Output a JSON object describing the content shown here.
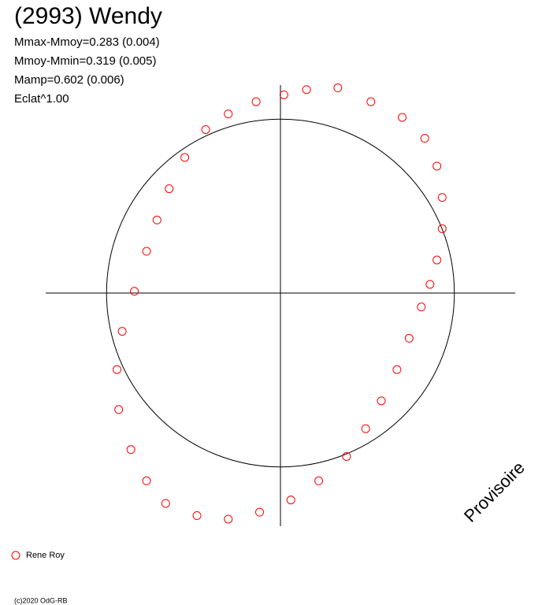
{
  "chart_data": {
    "type": "scatter",
    "title": "(2993) Wendy",
    "annotations": [
      "Mmax-Mmoy=0.283 (0.004)",
      "Mmoy-Mmin=0.319 (0.005)",
      "Mamp=0.602 (0.006)",
      "Eclat^1.00"
    ],
    "watermark": "Provisoire",
    "footer": "(c)2020 OdG-RB",
    "xlim": [
      -1.35,
      1.35
    ],
    "ylim": [
      -1.35,
      1.35
    ],
    "reference_circle": 1,
    "series": [
      {
        "name": "Rene Roy",
        "color": "#ff0000",
        "x": [
          0.02,
          0.15,
          0.33,
          0.52,
          0.7,
          0.83,
          0.9,
          0.93,
          0.93,
          0.9,
          0.86,
          0.81,
          0.74,
          0.67,
          0.58,
          0.49,
          0.38,
          0.22,
          0.06,
          -0.12,
          -0.3,
          -0.48,
          -0.66,
          -0.77,
          -0.86,
          -0.93,
          -0.94,
          -0.91,
          -0.84,
          -0.77,
          -0.71,
          -0.64,
          -0.55,
          -0.43,
          -0.3,
          -0.14
        ],
        "values": [
          1.14,
          1.17,
          1.18,
          1.1,
          1.01,
          0.89,
          0.73,
          0.55,
          0.37,
          0.19,
          0.05,
          -0.08,
          -0.26,
          -0.44,
          -0.62,
          -0.78,
          -0.94,
          -1.08,
          -1.19,
          -1.26,
          -1.3,
          -1.28,
          -1.21,
          -1.08,
          -0.9,
          -0.67,
          -0.44,
          -0.22,
          0.01,
          0.24,
          0.42,
          0.6,
          0.78,
          0.94,
          1.03,
          1.1
        ]
      }
    ]
  }
}
